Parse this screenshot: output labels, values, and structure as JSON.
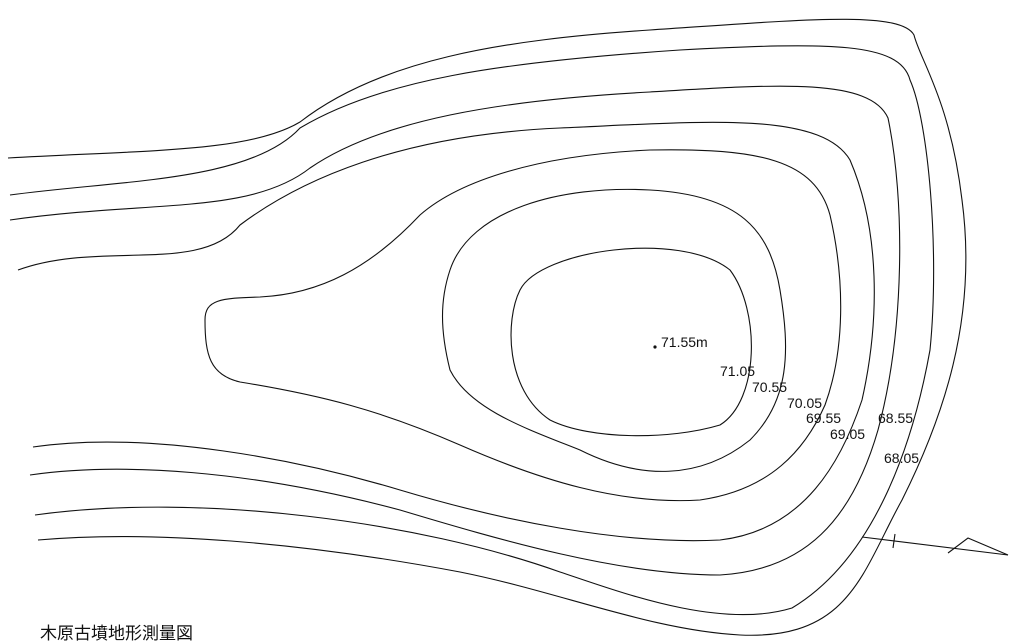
{
  "map": {
    "title": "木原古墳地形測量図",
    "summit_label": "71.55m",
    "contour_labels": [
      "71.05",
      "70.55",
      "70.05",
      "69.55",
      "69.05",
      "68.55",
      "68.05"
    ]
  }
}
